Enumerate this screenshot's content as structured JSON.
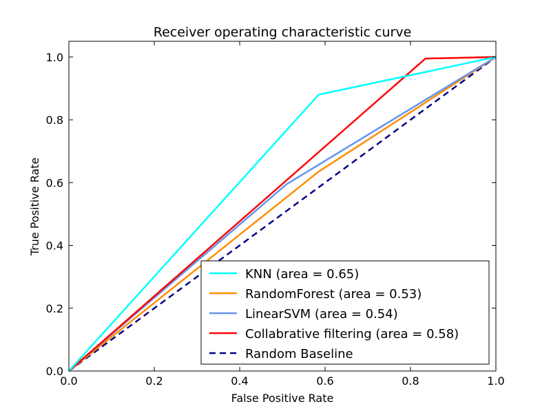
{
  "chart_data": {
    "type": "line",
    "title": "Receiver operating characteristic curve",
    "xlabel": "False Positive Rate",
    "ylabel": "True Positive Rate",
    "xlim": [
      0.0,
      1.0
    ],
    "ylim": [
      0.0,
      1.05
    ],
    "xticks": [
      "0.0",
      "0.2",
      "0.4",
      "0.6",
      "0.8",
      "1.0"
    ],
    "yticks": [
      "0.0",
      "0.2",
      "0.4",
      "0.6",
      "0.8",
      "1.0"
    ],
    "grid": false,
    "legend_position": "lower-right",
    "series": [
      {
        "name": "KNN (area = 0.65)",
        "color": "#00ffff",
        "dash": "solid",
        "x": [
          0.0,
          0.585,
          1.0
        ],
        "y": [
          0.0,
          0.88,
          1.0
        ]
      },
      {
        "name": "RandomForest (area = 0.53)",
        "color": "#ff8c00",
        "dash": "solid",
        "x": [
          0.0,
          0.585,
          1.0
        ],
        "y": [
          0.0,
          0.635,
          1.0
        ]
      },
      {
        "name": "LinearSVM (area = 0.54)",
        "color": "#6495ed",
        "dash": "solid",
        "x": [
          0.0,
          0.51,
          1.0
        ],
        "y": [
          0.0,
          0.595,
          1.0
        ]
      },
      {
        "name": "Collabrative filtering (area = 0.58)",
        "color": "#ff0000",
        "dash": "solid",
        "x": [
          0.0,
          0.835,
          1.0
        ],
        "y": [
          0.0,
          0.995,
          1.0
        ]
      },
      {
        "name": "Random Baseline",
        "color": "#000080",
        "dash": "dashed",
        "x": [
          0.0,
          1.0
        ],
        "y": [
          0.0,
          1.0
        ]
      }
    ]
  }
}
